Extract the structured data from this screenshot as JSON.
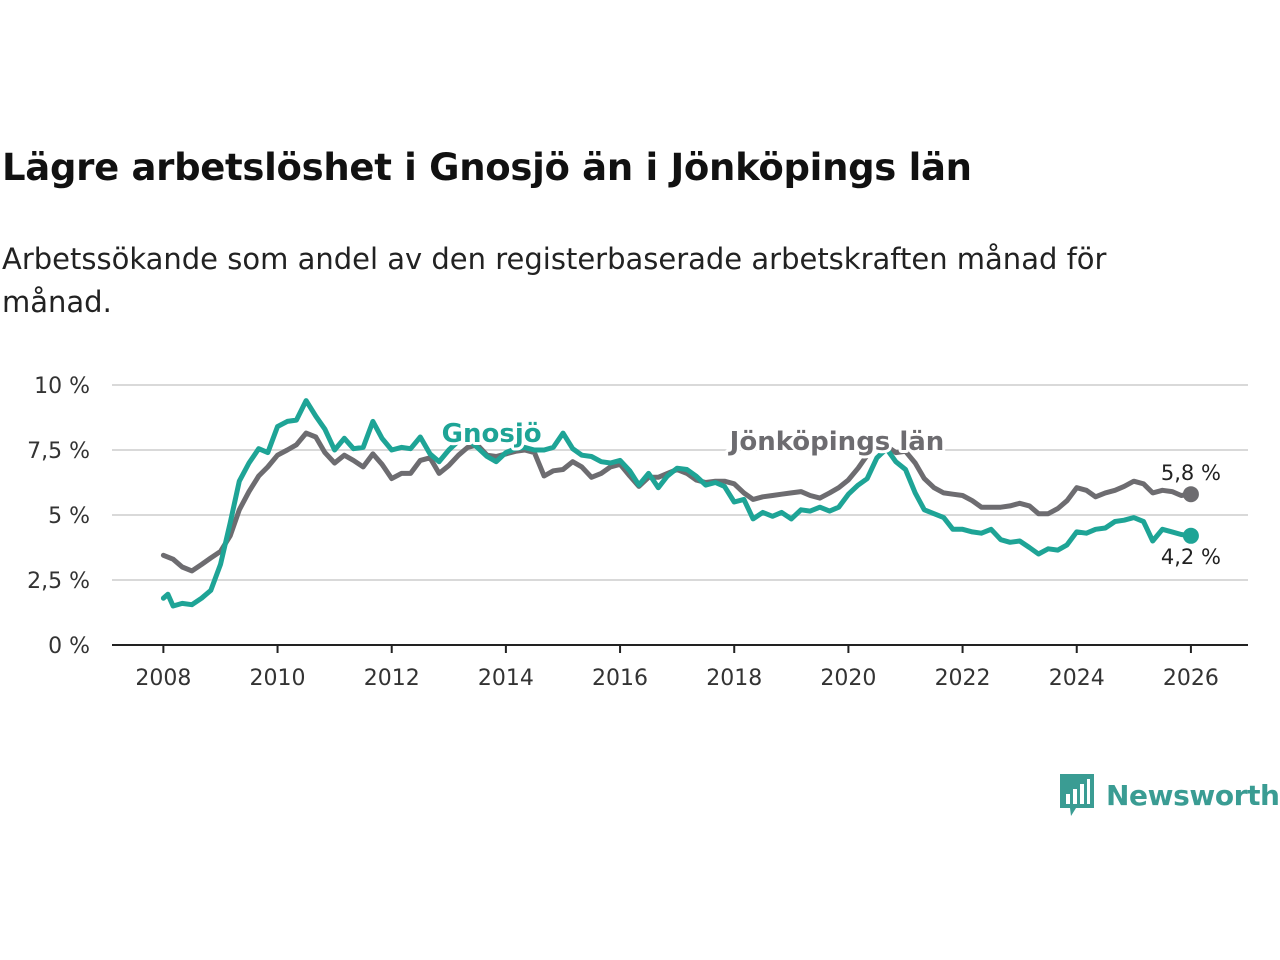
{
  "title": "Lägre arbetslöshet i Gnosjö än i Jönköpings län",
  "subtitle": "Arbetssökande som andel av den registerbaserade arbetskraften månad för månad.",
  "brand": {
    "name": "Newsworthy",
    "icon": "bar-chart-speech-bubble-icon",
    "color": "#3a9c93"
  },
  "chart_data": {
    "type": "line",
    "title": "Lägre arbetslöshet i Gnosjö än i Jönköpings län",
    "xlabel": "",
    "ylabel": "",
    "xlim": [
      2007.1,
      2027.0
    ],
    "ylim": [
      0,
      10
    ],
    "grid": true,
    "legend": "inline-labels",
    "y_ticks": [
      0,
      2.5,
      5,
      7.5,
      10
    ],
    "y_tick_labels": [
      "0 %",
      "2,5 %",
      "5 %",
      "7,5 %",
      "10 %"
    ],
    "x_ticks": [
      2008,
      2010,
      2012,
      2014,
      2016,
      2018,
      2020,
      2022,
      2024,
      2026
    ],
    "x_tick_labels": [
      "2008",
      "2010",
      "2012",
      "2014",
      "2016",
      "2018",
      "2020",
      "2022",
      "2024",
      "2026"
    ],
    "series": [
      {
        "name": "Jönköpings län",
        "color": "#6d6c70",
        "label_at": [
          2019.8,
          7.5
        ],
        "end_label": "5,8 %",
        "end_label_position": "above",
        "points": [
          [
            2008.0,
            3.45
          ],
          [
            2008.17,
            3.3
          ],
          [
            2008.33,
            3.0
          ],
          [
            2008.5,
            2.85
          ],
          [
            2008.67,
            3.1
          ],
          [
            2008.83,
            3.35
          ],
          [
            2009.0,
            3.6
          ],
          [
            2009.17,
            4.2
          ],
          [
            2009.33,
            5.2
          ],
          [
            2009.5,
            5.9
          ],
          [
            2009.67,
            6.5
          ],
          [
            2009.83,
            6.85
          ],
          [
            2010.0,
            7.3
          ],
          [
            2010.17,
            7.5
          ],
          [
            2010.33,
            7.7
          ],
          [
            2010.5,
            8.15
          ],
          [
            2010.67,
            8.0
          ],
          [
            2010.83,
            7.4
          ],
          [
            2011.0,
            7.0
          ],
          [
            2011.17,
            7.3
          ],
          [
            2011.33,
            7.1
          ],
          [
            2011.5,
            6.85
          ],
          [
            2011.67,
            7.35
          ],
          [
            2011.83,
            6.95
          ],
          [
            2012.0,
            6.4
          ],
          [
            2012.17,
            6.6
          ],
          [
            2012.33,
            6.6
          ],
          [
            2012.5,
            7.1
          ],
          [
            2012.67,
            7.2
          ],
          [
            2012.83,
            6.6
          ],
          [
            2013.0,
            6.9
          ],
          [
            2013.17,
            7.3
          ],
          [
            2013.33,
            7.6
          ],
          [
            2013.5,
            7.7
          ],
          [
            2013.67,
            7.3
          ],
          [
            2013.83,
            7.25
          ],
          [
            2014.0,
            7.35
          ],
          [
            2014.17,
            7.45
          ],
          [
            2014.33,
            7.5
          ],
          [
            2014.5,
            7.4
          ],
          [
            2014.67,
            6.5
          ],
          [
            2014.83,
            6.7
          ],
          [
            2015.0,
            6.75
          ],
          [
            2015.17,
            7.05
          ],
          [
            2015.33,
            6.85
          ],
          [
            2015.5,
            6.45
          ],
          [
            2015.67,
            6.6
          ],
          [
            2015.83,
            6.85
          ],
          [
            2016.0,
            6.95
          ],
          [
            2016.17,
            6.5
          ],
          [
            2016.33,
            6.1
          ],
          [
            2016.5,
            6.45
          ],
          [
            2016.67,
            6.45
          ],
          [
            2016.83,
            6.6
          ],
          [
            2017.0,
            6.75
          ],
          [
            2017.17,
            6.6
          ],
          [
            2017.33,
            6.35
          ],
          [
            2017.5,
            6.25
          ],
          [
            2017.67,
            6.3
          ],
          [
            2017.83,
            6.3
          ],
          [
            2018.0,
            6.2
          ],
          [
            2018.17,
            5.85
          ],
          [
            2018.33,
            5.6
          ],
          [
            2018.5,
            5.7
          ],
          [
            2018.67,
            5.75
          ],
          [
            2018.83,
            5.8
          ],
          [
            2019.0,
            5.85
          ],
          [
            2019.17,
            5.9
          ],
          [
            2019.33,
            5.75
          ],
          [
            2019.5,
            5.65
          ],
          [
            2019.67,
            5.85
          ],
          [
            2019.83,
            6.05
          ],
          [
            2020.0,
            6.35
          ],
          [
            2020.17,
            6.8
          ],
          [
            2020.33,
            7.3
          ],
          [
            2020.5,
            7.7
          ],
          [
            2020.67,
            7.65
          ],
          [
            2020.83,
            7.4
          ],
          [
            2021.0,
            7.45
          ],
          [
            2021.17,
            7.0
          ],
          [
            2021.33,
            6.4
          ],
          [
            2021.5,
            6.05
          ],
          [
            2021.67,
            5.85
          ],
          [
            2021.83,
            5.8
          ],
          [
            2022.0,
            5.75
          ],
          [
            2022.17,
            5.55
          ],
          [
            2022.33,
            5.3
          ],
          [
            2022.5,
            5.3
          ],
          [
            2022.67,
            5.3
          ],
          [
            2022.83,
            5.35
          ],
          [
            2023.0,
            5.45
          ],
          [
            2023.17,
            5.35
          ],
          [
            2023.33,
            5.05
          ],
          [
            2023.5,
            5.05
          ],
          [
            2023.67,
            5.25
          ],
          [
            2023.83,
            5.55
          ],
          [
            2024.0,
            6.05
          ],
          [
            2024.17,
            5.95
          ],
          [
            2024.33,
            5.7
          ],
          [
            2024.5,
            5.85
          ],
          [
            2024.67,
            5.95
          ],
          [
            2024.83,
            6.1
          ],
          [
            2025.0,
            6.3
          ],
          [
            2025.17,
            6.2
          ],
          [
            2025.33,
            5.85
          ],
          [
            2025.5,
            5.95
          ],
          [
            2025.67,
            5.9
          ],
          [
            2025.83,
            5.75
          ],
          [
            2026.0,
            5.8
          ]
        ]
      },
      {
        "name": "Gnosjö",
        "color": "#1ea496",
        "label_at": [
          2013.75,
          7.8
        ],
        "end_label": "4,2 %",
        "end_label_position": "below",
        "points": [
          [
            2008.0,
            1.8
          ],
          [
            2008.08,
            1.95
          ],
          [
            2008.17,
            1.5
          ],
          [
            2008.33,
            1.6
          ],
          [
            2008.5,
            1.55
          ],
          [
            2008.67,
            1.8
          ],
          [
            2008.83,
            2.1
          ],
          [
            2009.0,
            3.1
          ],
          [
            2009.17,
            4.7
          ],
          [
            2009.33,
            6.3
          ],
          [
            2009.5,
            7.0
          ],
          [
            2009.67,
            7.55
          ],
          [
            2009.83,
            7.4
          ],
          [
            2010.0,
            8.4
          ],
          [
            2010.17,
            8.6
          ],
          [
            2010.33,
            8.65
          ],
          [
            2010.5,
            9.4
          ],
          [
            2010.67,
            8.8
          ],
          [
            2010.83,
            8.3
          ],
          [
            2011.0,
            7.5
          ],
          [
            2011.17,
            7.95
          ],
          [
            2011.33,
            7.55
          ],
          [
            2011.5,
            7.6
          ],
          [
            2011.67,
            8.6
          ],
          [
            2011.83,
            7.95
          ],
          [
            2012.0,
            7.5
          ],
          [
            2012.17,
            7.6
          ],
          [
            2012.33,
            7.55
          ],
          [
            2012.5,
            8.0
          ],
          [
            2012.67,
            7.35
          ],
          [
            2012.83,
            7.05
          ],
          [
            2013.0,
            7.5
          ],
          [
            2013.17,
            7.85
          ],
          [
            2013.33,
            7.9
          ],
          [
            2013.5,
            7.6
          ],
          [
            2013.67,
            7.25
          ],
          [
            2013.83,
            7.05
          ],
          [
            2014.0,
            7.4
          ],
          [
            2014.17,
            7.55
          ],
          [
            2014.33,
            7.6
          ],
          [
            2014.5,
            7.5
          ],
          [
            2014.67,
            7.5
          ],
          [
            2014.83,
            7.6
          ],
          [
            2015.0,
            8.15
          ],
          [
            2015.17,
            7.55
          ],
          [
            2015.33,
            7.3
          ],
          [
            2015.5,
            7.25
          ],
          [
            2015.67,
            7.05
          ],
          [
            2015.83,
            7.0
          ],
          [
            2016.0,
            7.1
          ],
          [
            2016.17,
            6.7
          ],
          [
            2016.33,
            6.15
          ],
          [
            2016.5,
            6.6
          ],
          [
            2016.67,
            6.05
          ],
          [
            2016.83,
            6.5
          ],
          [
            2017.0,
            6.8
          ],
          [
            2017.17,
            6.75
          ],
          [
            2017.33,
            6.5
          ],
          [
            2017.5,
            6.15
          ],
          [
            2017.67,
            6.25
          ],
          [
            2017.83,
            6.1
          ],
          [
            2018.0,
            5.5
          ],
          [
            2018.17,
            5.6
          ],
          [
            2018.33,
            4.85
          ],
          [
            2018.5,
            5.1
          ],
          [
            2018.67,
            4.95
          ],
          [
            2018.83,
            5.1
          ],
          [
            2019.0,
            4.85
          ],
          [
            2019.17,
            5.2
          ],
          [
            2019.33,
            5.15
          ],
          [
            2019.5,
            5.3
          ],
          [
            2019.67,
            5.15
          ],
          [
            2019.83,
            5.3
          ],
          [
            2020.0,
            5.8
          ],
          [
            2020.17,
            6.15
          ],
          [
            2020.33,
            6.4
          ],
          [
            2020.5,
            7.2
          ],
          [
            2020.67,
            7.55
          ],
          [
            2020.83,
            7.05
          ],
          [
            2021.0,
            6.75
          ],
          [
            2021.17,
            5.85
          ],
          [
            2021.33,
            5.2
          ],
          [
            2021.5,
            5.05
          ],
          [
            2021.67,
            4.9
          ],
          [
            2021.83,
            4.45
          ],
          [
            2022.0,
            4.45
          ],
          [
            2022.17,
            4.35
          ],
          [
            2022.33,
            4.3
          ],
          [
            2022.5,
            4.45
          ],
          [
            2022.67,
            4.05
          ],
          [
            2022.83,
            3.95
          ],
          [
            2023.0,
            4.0
          ],
          [
            2023.17,
            3.75
          ],
          [
            2023.33,
            3.5
          ],
          [
            2023.5,
            3.7
          ],
          [
            2023.67,
            3.65
          ],
          [
            2023.83,
            3.85
          ],
          [
            2024.0,
            4.35
          ],
          [
            2024.17,
            4.3
          ],
          [
            2024.33,
            4.45
          ],
          [
            2024.5,
            4.5
          ],
          [
            2024.67,
            4.75
          ],
          [
            2024.83,
            4.8
          ],
          [
            2025.0,
            4.9
          ],
          [
            2025.17,
            4.75
          ],
          [
            2025.33,
            4.0
          ],
          [
            2025.5,
            4.45
          ],
          [
            2025.67,
            4.35
          ],
          [
            2025.83,
            4.25
          ],
          [
            2026.0,
            4.2
          ]
        ]
      }
    ]
  }
}
